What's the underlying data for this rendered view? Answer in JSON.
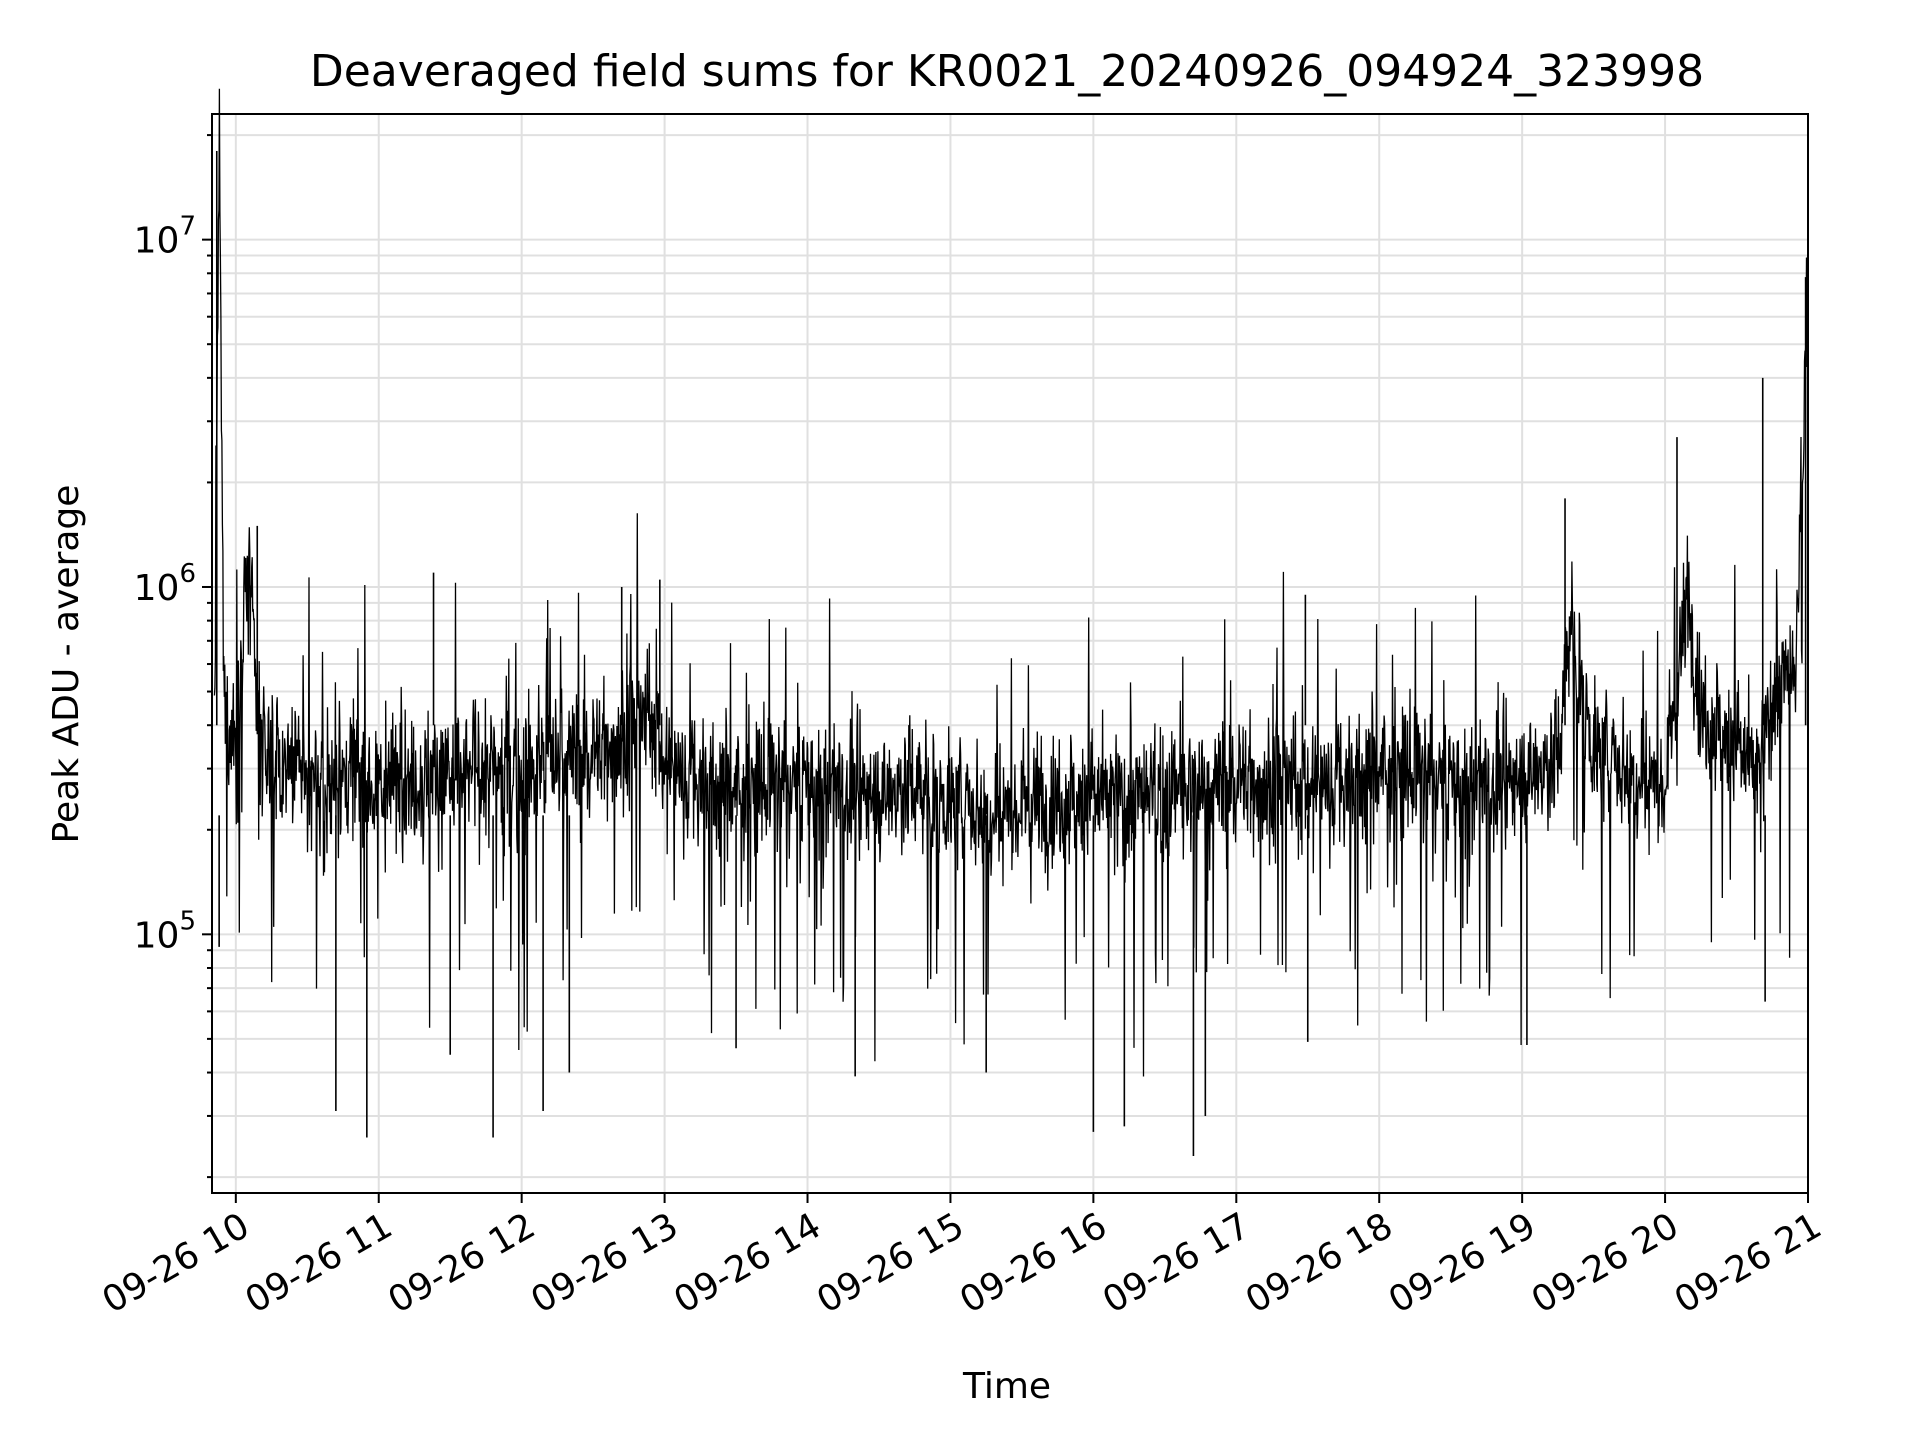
{
  "chart_data": {
    "type": "line",
    "title": "Deaveraged field sums for KR0021_20240926_094924_323998",
    "xlabel": "Time",
    "ylabel": "Peak ADU - average",
    "yscale": "log",
    "ylim": [
      18000,
      23000000
    ],
    "xlim": [
      "2024-09-26T09:50",
      "2024-09-26T21:00"
    ],
    "grid": true,
    "line_color": "#000000",
    "grid_color": "#e0e0e0",
    "x_ticks": [
      {
        "time": "2024-09-26T10:00",
        "label": "09-26 10"
      },
      {
        "time": "2024-09-26T11:00",
        "label": "09-26 11"
      },
      {
        "time": "2024-09-26T12:00",
        "label": "09-26 12"
      },
      {
        "time": "2024-09-26T13:00",
        "label": "09-26 13"
      },
      {
        "time": "2024-09-26T14:00",
        "label": "09-26 14"
      },
      {
        "time": "2024-09-26T15:00",
        "label": "09-26 15"
      },
      {
        "time": "2024-09-26T16:00",
        "label": "09-26 16"
      },
      {
        "time": "2024-09-26T17:00",
        "label": "09-26 17"
      },
      {
        "time": "2024-09-26T18:00",
        "label": "09-26 18"
      },
      {
        "time": "2024-09-26T19:00",
        "label": "09-26 19"
      },
      {
        "time": "2024-09-26T20:00",
        "label": "09-26 20"
      },
      {
        "time": "2024-09-26T21:00",
        "label": "09-26 21"
      }
    ],
    "y_ticks": [
      {
        "value": 100000,
        "base": "10",
        "exp": "5"
      },
      {
        "value": 1000000,
        "base": "10",
        "exp": "6"
      },
      {
        "value": 10000000,
        "base": "10",
        "exp": "7"
      }
    ],
    "series": [
      {
        "x": [
          "2024-09-26T09:51",
          "2024-09-26T09:53",
          "2024-09-26T09:55",
          "2024-09-26T10:00",
          "2024-09-26T10:05",
          "2024-09-26T10:10",
          "2024-09-26T10:15",
          "2024-09-26T10:20",
          "2024-09-26T10:30",
          "2024-09-26T10:40",
          "2024-09-26T10:50",
          "2024-09-26T11:00",
          "2024-09-26T11:15",
          "2024-09-26T11:30",
          "2024-09-26T11:45",
          "2024-09-26T12:00",
          "2024-09-26T12:15",
          "2024-09-26T12:30",
          "2024-09-26T12:45",
          "2024-09-26T12:55",
          "2024-09-26T13:00",
          "2024-09-26T13:15",
          "2024-09-26T13:30",
          "2024-09-26T13:45",
          "2024-09-26T14:00",
          "2024-09-26T14:15",
          "2024-09-26T14:30",
          "2024-09-26T14:45",
          "2024-09-26T15:00",
          "2024-09-26T15:15",
          "2024-09-26T15:30",
          "2024-09-26T15:45",
          "2024-09-26T16:00",
          "2024-09-26T16:15",
          "2024-09-26T16:30",
          "2024-09-26T16:45",
          "2024-09-26T17:00",
          "2024-09-26T17:15",
          "2024-09-26T17:30",
          "2024-09-26T17:45",
          "2024-09-26T18:00",
          "2024-09-26T18:15",
          "2024-09-26T18:30",
          "2024-09-26T18:45",
          "2024-09-26T19:00",
          "2024-09-26T19:15",
          "2024-09-26T19:20",
          "2024-09-26T19:30",
          "2024-09-26T19:45",
          "2024-09-26T20:00",
          "2024-09-26T20:10",
          "2024-09-26T20:15",
          "2024-09-26T20:30",
          "2024-09-26T20:40",
          "2024-09-26T20:45",
          "2024-09-26T20:55",
          "2024-09-26T21:00"
        ],
        "y": [
          400000,
          18000000,
          450000,
          350000,
          1200000,
          380000,
          320000,
          300000,
          280000,
          260000,
          300000,
          270000,
          290000,
          280000,
          300000,
          290000,
          320000,
          330000,
          380000,
          420000,
          300000,
          280000,
          260000,
          270000,
          280000,
          260000,
          250000,
          270000,
          240000,
          230000,
          240000,
          250000,
          250000,
          240000,
          250000,
          260000,
          280000,
          270000,
          260000,
          280000,
          300000,
          290000,
          280000,
          270000,
          280000,
          320000,
          800000,
          340000,
          300000,
          280000,
          1000000,
          450000,
          350000,
          280000,
          500000,
          550000,
          7800000
        ]
      }
    ],
    "spike_highs": [
      {
        "x": "2024-09-26T09:52",
        "y": 18000000
      },
      {
        "x": "2024-09-26T10:09",
        "y": 1500000
      },
      {
        "x": "2024-09-26T11:23",
        "y": 1100000
      },
      {
        "x": "2024-09-26T12:42",
        "y": 1000000
      },
      {
        "x": "2024-09-26T12:58",
        "y": 1050000
      },
      {
        "x": "2024-09-26T17:29",
        "y": 950000
      },
      {
        "x": "2024-09-26T19:18",
        "y": 1800000
      },
      {
        "x": "2024-09-26T20:05",
        "y": 2700000
      },
      {
        "x": "2024-09-26T20:41",
        "y": 4000000
      },
      {
        "x": "2024-09-26T20:59",
        "y": 7800000
      }
    ],
    "spike_lows": [
      {
        "x": "2024-09-26T09:53",
        "y": 92000
      },
      {
        "x": "2024-09-26T10:42",
        "y": 31000
      },
      {
        "x": "2024-09-26T10:55",
        "y": 26000
      },
      {
        "x": "2024-09-26T11:30",
        "y": 45000
      },
      {
        "x": "2024-09-26T11:48",
        "y": 26000
      },
      {
        "x": "2024-09-26T12:09",
        "y": 31000
      },
      {
        "x": "2024-09-26T12:20",
        "y": 40000
      },
      {
        "x": "2024-09-26T13:30",
        "y": 47000
      },
      {
        "x": "2024-09-26T14:20",
        "y": 39000
      },
      {
        "x": "2024-09-26T15:15",
        "y": 40000
      },
      {
        "x": "2024-09-26T16:00",
        "y": 27000
      },
      {
        "x": "2024-09-26T16:13",
        "y": 28000
      },
      {
        "x": "2024-09-26T16:42",
        "y": 23000
      },
      {
        "x": "2024-09-26T16:47",
        "y": 30000
      },
      {
        "x": "2024-09-26T17:30",
        "y": 49000
      },
      {
        "x": "2024-09-26T19:02",
        "y": 48000
      },
      {
        "x": "2024-09-26T20:42",
        "y": 64000
      }
    ]
  }
}
